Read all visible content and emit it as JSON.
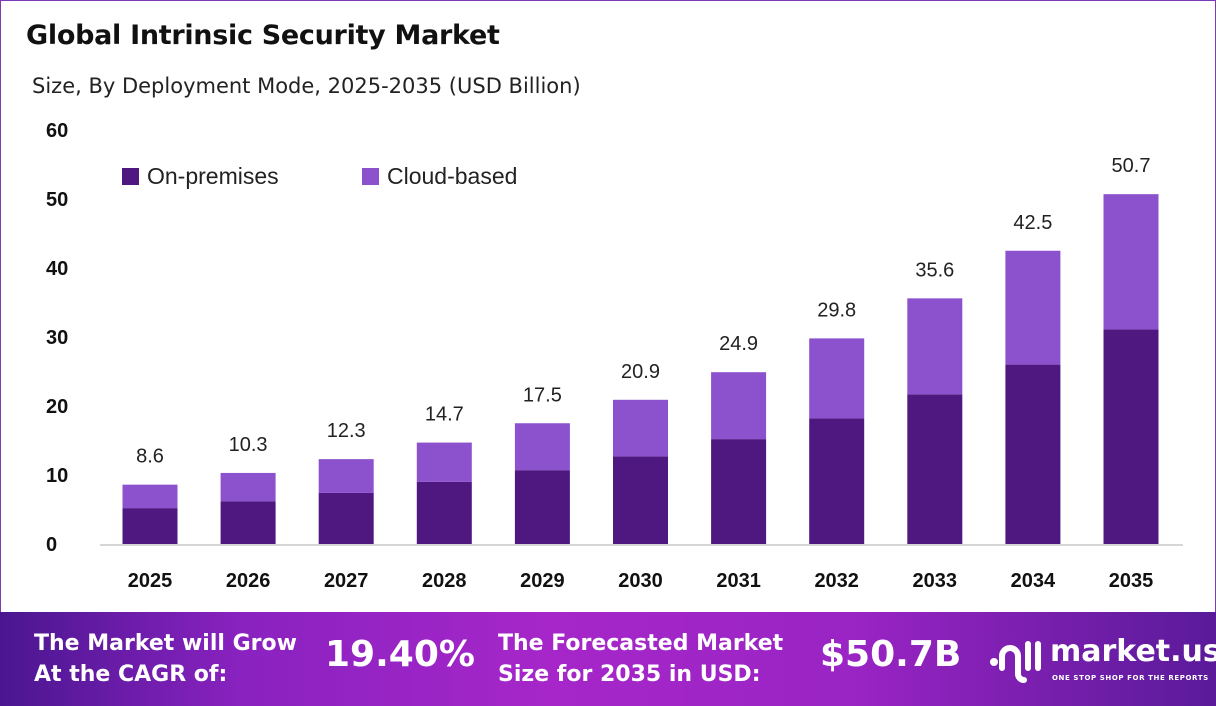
{
  "chart_data": {
    "type": "bar",
    "stacked": true,
    "title": "Global Intrinsic Security Market",
    "subtitle": "Size, By Deployment Mode, 2025-2035 (USD Billion)",
    "categories": [
      "2025",
      "2026",
      "2027",
      "2028",
      "2029",
      "2030",
      "2031",
      "2032",
      "2033",
      "2034",
      "2035"
    ],
    "series": [
      {
        "name": "On-premises",
        "color": "#4f1880",
        "values": [
          5.2,
          6.2,
          7.4,
          9.0,
          10.7,
          12.7,
          15.2,
          18.2,
          21.7,
          26.0,
          31.1
        ]
      },
      {
        "name": "Cloud-based",
        "color": "#8c52cd",
        "values": [
          3.4,
          4.1,
          4.9,
          5.7,
          6.8,
          8.2,
          9.7,
          11.6,
          13.9,
          16.5,
          19.6
        ]
      }
    ],
    "totals": [
      "8.6",
      "10.3",
      "12.3",
      "14.7",
      "17.5",
      "20.9",
      "24.9",
      "29.8",
      "35.6",
      "42.5",
      "50.7"
    ],
    "yticks": [
      "0",
      "10",
      "20",
      "30",
      "40",
      "50",
      "60"
    ],
    "ylim": [
      0,
      60
    ],
    "legend": "top-left",
    "grid": false
  },
  "footer": {
    "cagr_label_1": "The Market will Grow",
    "cagr_label_2": "At the CAGR of:",
    "cagr_value": "19.40%",
    "forecast_label_1": "The Forecasted Market",
    "forecast_label_2": "Size for 2035 in USD:",
    "forecast_value": "$50.7B",
    "brand": "market.us",
    "tagline": "ONE STOP SHOP FOR THE REPORTS"
  }
}
